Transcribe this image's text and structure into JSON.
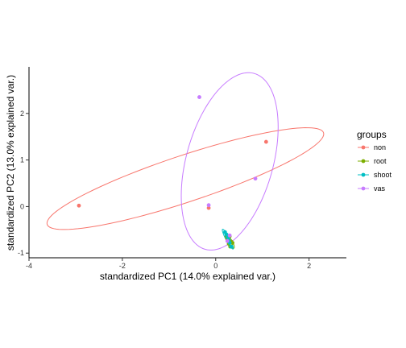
{
  "chart_data": {
    "type": "scatter",
    "xlabel": "standardized PC1 (14.0% explained var.)",
    "ylabel": "standardized PC2 (13.0% explained var.)",
    "xlim": [
      -4,
      2.8
    ],
    "ylim": [
      -1.1,
      3.0
    ],
    "xticks": [
      -4,
      -2,
      0,
      2
    ],
    "yticks": [
      -1,
      0,
      1,
      2
    ],
    "grid": false,
    "legend_position": "right",
    "legend_title": "groups",
    "series": [
      {
        "name": "non",
        "color": "#F8766D",
        "points": [
          [
            -2.93,
            0.02
          ],
          [
            1.08,
            1.39
          ],
          [
            -0.15,
            -0.03
          ]
        ],
        "ellipse": {
          "center": [
            -0.65,
            0.6
          ],
          "semi_major": 3.12,
          "semi_minor": 0.5,
          "angle_deg": 18.4
        }
      },
      {
        "name": "root",
        "color": "#7CAE00",
        "points": [
          [
            0.3,
            -0.64
          ],
          [
            0.25,
            -0.7
          ],
          [
            0.33,
            -0.75
          ],
          [
            0.28,
            -0.8
          ],
          [
            0.36,
            -0.78
          ],
          [
            0.31,
            -0.86
          ],
          [
            0.24,
            -0.65
          ]
        ],
        "ellipse": {
          "center": [
            0.3,
            -0.75
          ],
          "semi_major": 0.17,
          "semi_minor": 0.05,
          "angle_deg": -58
        }
      },
      {
        "name": "shoot",
        "color": "#00BFC4",
        "points": [
          [
            0.2,
            -0.55
          ],
          [
            0.26,
            -0.66
          ],
          [
            0.3,
            -0.78
          ],
          [
            0.33,
            -0.86
          ],
          [
            0.23,
            -0.6
          ],
          [
            0.28,
            -0.72
          ]
        ],
        "ellipse": {
          "center": [
            0.26,
            -0.7
          ],
          "semi_major": 0.24,
          "semi_minor": 0.04,
          "angle_deg": -62
        }
      },
      {
        "name": "vas",
        "color": "#C77CFF",
        "points": [
          [
            -0.35,
            2.35
          ],
          [
            0.85,
            0.6
          ],
          [
            -0.15,
            0.03
          ],
          [
            0.3,
            -0.62
          ],
          [
            0.25,
            -0.74
          ]
        ],
        "ellipse": {
          "center": [
            0.3,
            0.97
          ],
          "semi_major": 1.96,
          "semi_minor": 0.93,
          "angle_deg": 74.5
        }
      }
    ]
  }
}
